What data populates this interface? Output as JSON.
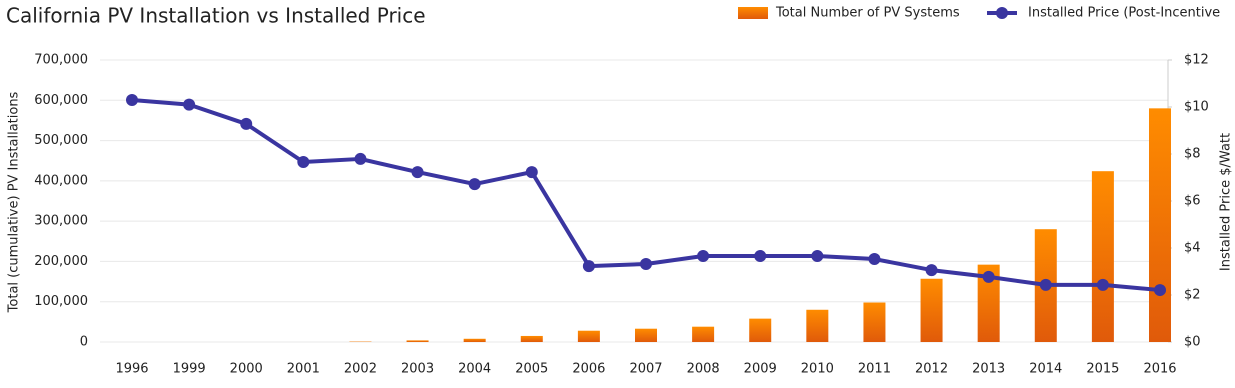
{
  "chart_data": {
    "type": "bar-line",
    "title": "California PV Installation vs Installed Price",
    "y_label": "Total (cumulative) PV Installations",
    "y2_label": "Installed Price $/Watt",
    "categories": [
      "1996",
      "1999",
      "2000",
      "2001",
      "2002",
      "2003",
      "2004",
      "2005",
      "2006",
      "2007",
      "2008",
      "2009",
      "2010",
      "2011",
      "2012",
      "2013",
      "2014",
      "2015",
      "2016"
    ],
    "series": [
      {
        "name": "Total Number of PV Systems",
        "type": "bar",
        "color": "#f07c0c",
        "values": [
          0,
          0,
          0,
          0,
          1000,
          4000,
          8000,
          15000,
          28000,
          33000,
          38000,
          58000,
          80000,
          98000,
          157000,
          192000,
          280000,
          424000,
          580000
        ]
      },
      {
        "name": "Installed Price (Post-Incentive",
        "type": "line",
        "axis": "y2",
        "color": "#3a35a0",
        "values": [
          10.3,
          10.1,
          9.28,
          7.66,
          7.79,
          7.23,
          6.72,
          7.23,
          3.23,
          3.32,
          3.66,
          3.66,
          3.66,
          3.53,
          3.06,
          2.77,
          2.43,
          2.43,
          2.21
        ]
      }
    ],
    "ylim": [
      0,
      700000
    ],
    "yticks": [
      0,
      {
        "value": 100000,
        "label": "100,000"
      },
      {
        "value": 200000,
        "label": "200,000"
      },
      {
        "value": 300000,
        "label": "300,000"
      },
      {
        "value": 400000,
        "label": "400,000"
      },
      {
        "value": 500000,
        "label": "500,000"
      },
      {
        "value": 600000,
        "label": "600,000"
      },
      {
        "value": 700000,
        "label": "700,000"
      }
    ],
    "y2lim": [
      0,
      12
    ],
    "y2ticks": [
      {
        "value": 0,
        "label": "$0"
      },
      {
        "value": 2,
        "label": "$2"
      },
      {
        "value": 4,
        "label": "$4"
      },
      {
        "value": 6,
        "label": "$6"
      },
      {
        "value": 8,
        "label": "$8"
      },
      {
        "value": 10,
        "label": "$10"
      },
      {
        "value": 12,
        "label": "$12"
      }
    ],
    "grid": true,
    "legend": "top-right"
  }
}
